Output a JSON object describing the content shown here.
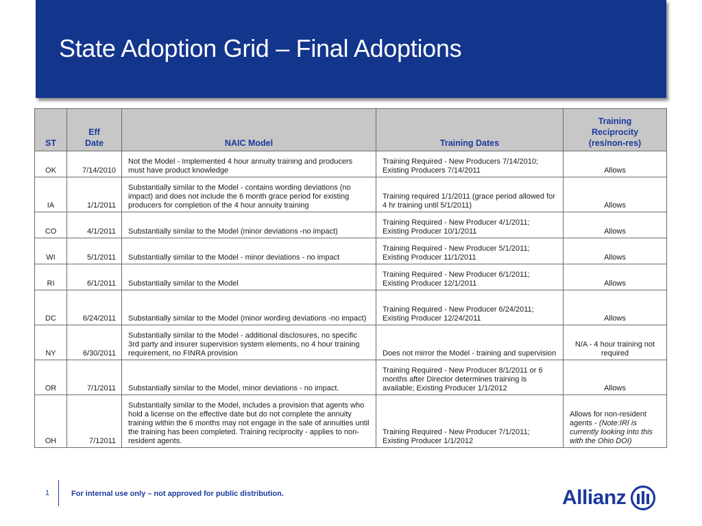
{
  "title": "State Adoption Grid – Final Adoptions",
  "table": {
    "headers": {
      "st": "ST",
      "eff_date_line1": "Eff",
      "eff_date_line2": "Date",
      "naic_model": "NAIC Model",
      "training_dates": "Training Dates",
      "reciprocity_line1": "Training",
      "reciprocity_line2": "Reciprocity",
      "reciprocity_line3": "(res/non-res)"
    },
    "rows": [
      {
        "st": "OK",
        "eff": "7/14/2010",
        "model": "Not the Model - Implemented 4 hour annuity training  and producers must have product knowledge",
        "dates": "Training Required - New Producers 7/14/2010; Existing Producers 7/14/2011",
        "recip": "Allows"
      },
      {
        "st": "IA",
        "eff": "1/1/2011",
        "model": "Substantially similar to the Model - contains wording deviations (no impact) and does not include the 6 month grace period for existing producers for completion of the 4 hour annuity training",
        "dates": "Training required 1/1/2011 (grace period allowed for 4 hr training until 5/1/2011)",
        "recip": "Allows"
      },
      {
        "st": "CO",
        "eff": "4/1/2011",
        "model": "Substantially similar to the Model (minor deviations -no impact)",
        "dates": "Training Required - New Producer 4/1/2011; Existing Producer 10/1/2011",
        "recip": "Allows"
      },
      {
        "st": "WI",
        "eff": "5/1/2011",
        "model": "Substantially similar to the Model - minor deviations - no impact",
        "dates": "Training Required - New Producer 5/1/2011; Existing Producer 11/1/2011",
        "recip": "Allows"
      },
      {
        "st": "RI",
        "eff": "6/1/2011",
        "model": "Substantially similar to the Model",
        "dates": "Training Required - New Producer 6/1/2011; Existing Producer 12/1/2011",
        "recip": "Allows"
      },
      {
        "st": "DC",
        "eff": "6/24/2011",
        "model": "Substantially similar to the Model (minor wording deviations -no impact)",
        "dates": "Training Required - New Producer 6/24/2011; Existing Producer 12/24/2011",
        "recip": "Allows"
      },
      {
        "st": "NY",
        "eff": "6/30/2011",
        "model": "Substantially similar to the Model - additional disclosures, no specific 3rd party and insurer supervision system elements, no 4 hour training requirement, no FINRA provision",
        "dates": "Does not mirror the Model - training and supervision",
        "recip": "N/A - 4 hour training not required"
      },
      {
        "st": "OR",
        "eff": "7/1/2011",
        "model": "Substantially similar to the Model, minor deviations - no impact.",
        "dates": "Training Required - New Producer 8/1/2011 or 6 months after Director determines training is available; Existing Producer 1/1/2012",
        "recip": "Allows"
      },
      {
        "st": "OH",
        "eff": "7/12011",
        "model": "Substantially similar to the Model, includes a provision that agents who hold a license on the effective date but do not complete the annuity training within the 6 months may not engage in the sale of annuities until the training has been completed.  Training reciprocity - applies to  non-resident agents.",
        "dates": "Training Required - New Producer 7/1/2011; Existing Producer 1/1/2012",
        "recip": "Allows for non-resident agents - ",
        "recip_note": "(Note:IRI is currently looking into this with the Ohio DOI)"
      }
    ]
  },
  "footer": {
    "page_number": "1",
    "disclaimer": "For internal use only – not approved for public distribution.",
    "logo_text": "Allianz",
    "logo_icon": "allianz-eagle-icon"
  },
  "colors": {
    "title_band": "#13358c",
    "header_bg": "#c7c7c7",
    "header_text": "#1b3a9c",
    "brand_blue": "#1b3a9c"
  }
}
